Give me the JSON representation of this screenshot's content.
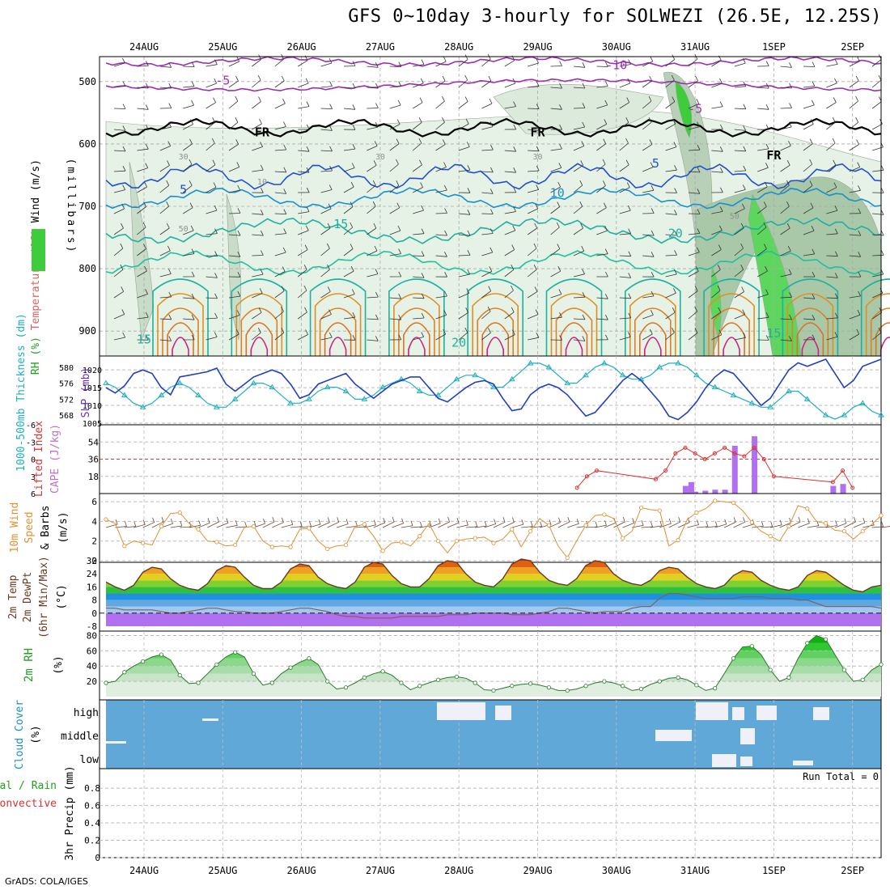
{
  "title": "GFS 0~10day 3-hourly for SOLWEZI (26.5E, 12.25S)",
  "credit": "GrADS: COLA/IGES",
  "dates": [
    "24AUG",
    "25AUG",
    "26AUG",
    "27AUG",
    "28AUG",
    "29AUG",
    "30AUG",
    "31AUG",
    "1SEP",
    "2SEP"
  ],
  "chart_data": [
    {
      "type": "heatmap",
      "panel": "upper-air",
      "ylabel_parts": [
        {
          "text": "RH (%)",
          "color": "#20a020"
        },
        {
          "text": "Temperature (°C)",
          "color": "#e06060"
        },
        {
          "text": "Wind (m/s)",
          "color": "#000000"
        },
        {
          "text": "(millibars)",
          "color": "#000000"
        }
      ],
      "yticks": [
        500,
        600,
        700,
        800,
        900
      ],
      "contour_labels": [
        {
          "text": "-10",
          "color": "#9b30b0",
          "x": "30AUG 00",
          "p": 480
        },
        {
          "text": "-5",
          "color": "#9b30b0",
          "x": "25AUG 00",
          "p": 505
        },
        {
          "text": "-5",
          "color": "#9b30b0",
          "x": "31AUG 00",
          "p": 550
        },
        {
          "text": "FR",
          "color": "#000000",
          "x": "25AUG 12",
          "p": 588
        },
        {
          "text": "FR",
          "color": "#000000",
          "x": "29AUG 00",
          "p": 588
        },
        {
          "text": "FR",
          "color": "#000000",
          "x": "1SEP 00",
          "p": 625
        },
        {
          "text": "5",
          "color": "#2050d0",
          "x": "24AUG 12",
          "p": 680
        },
        {
          "text": "5",
          "color": "#2050d0",
          "x": "30AUG 12",
          "p": 638
        },
        {
          "text": "10",
          "color": "#1a8fcf",
          "x": "29AUG 06",
          "p": 685
        },
        {
          "text": "15",
          "color": "#20b0a0",
          "x": "26AUG 12",
          "p": 735
        },
        {
          "text": "20",
          "color": "#20b0a0",
          "x": "30AUG 18",
          "p": 750
        },
        {
          "text": "15",
          "color": "#20b0a0",
          "x": "24AUG 00",
          "p": 920
        },
        {
          "text": "20",
          "color": "#20b0a0",
          "x": "28AUG 00",
          "p": 925
        },
        {
          "text": "15",
          "color": "#20b0a0",
          "x": "1SEP 00",
          "p": 910
        },
        {
          "text": "30",
          "color": "#909090",
          "x": "24AUG 12",
          "p": 625
        },
        {
          "text": "30",
          "color": "#909090",
          "x": "27AUG 00",
          "p": 625
        },
        {
          "text": "30",
          "color": "#909090",
          "x": "29AUG 00",
          "p": 625
        },
        {
          "text": "10",
          "color": "#909090",
          "x": "25AUG 12",
          "p": 665
        },
        {
          "text": "50",
          "color": "#909090",
          "x": "24AUG 12",
          "p": 740
        },
        {
          "text": "50",
          "color": "#909090",
          "x": "31AUG 12",
          "p": 720
        }
      ]
    },
    {
      "type": "line",
      "panel": "slp-thickness",
      "ylabel_left": "1000-500mb Thickness (dm)",
      "ylabel_right": "SLP (mb)",
      "yticks_left": [
        568,
        572,
        576,
        580
      ],
      "yticks_right": [
        1005,
        1010,
        1015,
        1020
      ],
      "series": [
        {
          "name": "SLP (mb)",
          "color": "#2040c0",
          "axis": "right",
          "values": [
            1015,
            1013.5,
            1015.5,
            1019,
            1020,
            1019,
            1015,
            1013,
            1018,
            1018.5,
            1019,
            1019.5,
            1020.5,
            1016,
            1014,
            1016,
            1018,
            1019,
            1020,
            1019,
            1016,
            1012,
            1013,
            1016,
            1017,
            1018,
            1019,
            1016,
            1014,
            1012,
            1014,
            1016,
            1017,
            1018,
            1018,
            1015,
            1012,
            1011,
            1013,
            1015,
            1016.5,
            1017,
            1016,
            1012,
            1008.5,
            1009,
            1013,
            1015,
            1016,
            1015,
            1013,
            1010,
            1007,
            1008,
            1011,
            1014,
            1017,
            1019,
            1017,
            1014,
            1011,
            1007,
            1006,
            1008,
            1011,
            1015,
            1018,
            1020,
            1019,
            1016,
            1013,
            1010,
            1012,
            1016,
            1020,
            1022,
            1021,
            1022,
            1023,
            1019,
            1015,
            1017,
            1021,
            1022,
            1023
          ]
        },
        {
          "name": "1000-500mb Thickness (dm)",
          "color": "#20b0c0",
          "axis": "left",
          "values": [
            576,
            575,
            573,
            571,
            570,
            571,
            573,
            575,
            576,
            575,
            573,
            571,
            570,
            570,
            572,
            574,
            576,
            576,
            575,
            573,
            571,
            571,
            572,
            574,
            575,
            575,
            574,
            572,
            572,
            573,
            575,
            576,
            577,
            576,
            574,
            573,
            573,
            575,
            577,
            578,
            578,
            577,
            575,
            575,
            577,
            579,
            581,
            581,
            580,
            578,
            576,
            576,
            578,
            580,
            581,
            580,
            578,
            577,
            577,
            578,
            580,
            581,
            581,
            580,
            578,
            576,
            575,
            574,
            573,
            572,
            571,
            570,
            570,
            572,
            574,
            574,
            572,
            570,
            568,
            567,
            568,
            570,
            571,
            569,
            568
          ]
        }
      ]
    },
    {
      "type": "bar",
      "panel": "cape-li",
      "ylabel_left": "Lifted Index",
      "ylabel_right": "CAPE (J/kg)",
      "yticks_left": [
        -6,
        -3,
        0,
        3,
        6
      ],
      "yticks_right": [
        18,
        36,
        54
      ],
      "series": [
        {
          "name": "CAPE (J/kg)",
          "color": "#b070f0",
          "points": [
            [
              "30AUG 21",
              8
            ],
            [
              "30AUG 21+",
              12
            ],
            [
              "31AUG 00",
              2
            ],
            [
              "31AUG 03",
              3
            ],
            [
              "31AUG 06",
              4
            ],
            [
              "31AUG 09",
              4
            ],
            [
              "31AUG 12",
              50
            ],
            [
              "31AUG 18",
              60
            ],
            [
              "1SEP 18",
              8
            ],
            [
              "1SEP 21",
              10
            ]
          ]
        },
        {
          "name": "Lifted Index",
          "color": "#e03030",
          "points": [
            [
              "29AUG 12",
              5
            ],
            [
              "29AUG 15",
              3
            ],
            [
              "29AUG 18",
              2
            ],
            [
              "30AUG 12",
              3.5
            ],
            [
              "30AUG 15",
              2
            ],
            [
              "30AUG 18",
              -1
            ],
            [
              "30AUG 21",
              -2
            ],
            [
              "31AUG 00",
              -1
            ],
            [
              "31AUG 03",
              0
            ],
            [
              "31AUG 06",
              -1
            ],
            [
              "31AUG 09",
              -2
            ],
            [
              "31AUG 12",
              -1
            ],
            [
              "31AUG 15",
              -0.5
            ],
            [
              "31AUG 18",
              -2
            ],
            [
              "31AUG 21",
              0
            ],
            [
              "1SEP 00",
              3
            ],
            [
              "1SEP 18",
              4
            ],
            [
              "1SEP 21",
              2
            ],
            [
              "2SEP 00",
              5
            ]
          ]
        }
      ]
    },
    {
      "type": "line",
      "panel": "wind10m",
      "ylabel": "10m Wind Speed & Barbs (m/s)",
      "yticks": [
        0,
        2,
        4,
        6
      ],
      "series": [
        {
          "name": "10m Wind Speed",
          "color": "#e09030",
          "values": [
            4.2,
            3.8,
            1.5,
            2.0,
            1.8,
            1.6,
            3.5,
            4.8,
            4.9,
            3.8,
            3.2,
            2.0,
            1.9,
            1.5,
            1.6,
            3.4,
            3.5,
            2.0,
            1.4,
            1.5,
            1.4,
            3.2,
            3.3,
            2.0,
            1.2,
            1.5,
            1.6,
            3.5,
            3.7,
            2.5,
            1.0,
            1.8,
            1.9,
            1.5,
            2.5,
            3.8,
            2.0,
            0.8,
            2.0,
            2.2,
            2.3,
            2.4,
            1.8,
            2.2,
            3.2,
            1.4,
            3.0,
            4.3,
            3.6,
            1.5,
            0.3,
            2.0,
            3.6,
            4.6,
            4.7,
            4.3,
            2.3,
            3.0,
            5.4,
            5.2,
            5.1,
            1.5,
            2.1,
            4.2,
            4.9,
            5.3,
            6.1,
            6.0,
            5.9,
            5.1,
            3.9,
            3.0,
            2.5,
            2.0,
            3.5,
            5.6,
            5.3,
            4.0,
            3.8,
            3.1,
            3.0,
            2.2,
            3.0,
            3.7,
            4.6
          ]
        }
      ]
    },
    {
      "type": "area",
      "panel": "temp2m",
      "ylabel": "2m Temp 2m DewPt (6hr Min/Max) (°C)",
      "yticks": [
        -8,
        0,
        8,
        16,
        24,
        32
      ],
      "series": [
        {
          "name": "2m Temp",
          "color": "#6a3a20",
          "values": [
            19,
            16,
            14,
            17,
            25,
            28,
            27,
            21,
            17,
            15,
            14,
            18,
            26,
            29,
            28,
            22,
            17,
            15,
            15,
            19,
            27,
            30,
            29,
            22,
            18,
            16,
            15,
            19,
            28,
            31,
            30,
            23,
            18,
            16,
            16,
            21,
            29,
            32,
            31,
            24,
            19,
            17,
            16,
            21,
            30,
            33,
            32,
            25,
            20,
            18,
            17,
            21,
            29,
            32,
            31,
            24,
            20,
            18,
            17,
            20,
            26,
            28,
            27,
            22,
            18,
            16,
            15,
            17,
            23,
            26,
            25,
            20,
            17,
            15,
            14,
            16,
            23,
            26,
            25,
            21,
            17,
            14,
            13,
            16,
            17
          ]
        },
        {
          "name": "2m DewPt",
          "color": "#806060",
          "values": [
            3,
            3,
            2,
            2,
            2,
            2,
            1,
            0,
            0,
            1,
            2,
            3,
            3,
            2,
            1,
            1,
            0,
            0,
            0,
            1,
            2,
            3,
            3,
            2,
            1,
            -1,
            -2,
            -2,
            -3,
            -3,
            -3,
            -3,
            -2,
            -2,
            -2,
            -2,
            -2,
            -1,
            -1,
            -1,
            0,
            0,
            0,
            0,
            -1,
            -1,
            -1,
            0,
            1,
            3,
            3,
            2,
            1,
            0,
            1,
            1,
            1,
            3,
            4,
            4,
            9,
            12,
            12,
            11,
            10,
            9,
            9,
            9,
            9,
            10,
            10,
            10,
            9,
            9,
            9,
            8,
            8,
            6,
            4,
            4,
            4,
            4,
            4,
            4,
            3
          ]
        }
      ]
    },
    {
      "type": "area",
      "panel": "rh2m",
      "ylabel": "2m RH (%)",
      "yticks": [
        20,
        40,
        60,
        80
      ],
      "series": [
        {
          "name": "2m RH",
          "color": "#2a9a2a",
          "values": [
            18,
            20,
            32,
            40,
            46,
            52,
            55,
            48,
            28,
            17,
            18,
            30,
            42,
            52,
            58,
            52,
            30,
            15,
            18,
            30,
            38,
            45,
            50,
            42,
            20,
            10,
            12,
            18,
            25,
            30,
            33,
            28,
            18,
            9,
            14,
            18,
            22,
            25,
            26,
            24,
            18,
            9,
            8,
            11,
            14,
            16,
            17,
            15,
            12,
            8,
            8,
            10,
            14,
            18,
            20,
            18,
            14,
            8,
            10,
            16,
            20,
            24,
            25,
            22,
            15,
            8,
            11,
            30,
            50,
            65,
            66,
            55,
            35,
            20,
            25,
            50,
            70,
            80,
            75,
            55,
            35,
            20,
            22,
            35,
            42
          ]
        }
      ]
    },
    {
      "type": "heatmap",
      "panel": "cloud",
      "ylabel": "Cloud Cover (%)",
      "levels": [
        "high",
        "middle",
        "low"
      ]
    },
    {
      "type": "bar",
      "panel": "precip",
      "ylabel_parts": [
        {
          "text": "Total / Rain",
          "color": "#20a020"
        },
        {
          "text": "Convective",
          "color": "#e03030"
        },
        {
          "text": "3hr Precip (mm)",
          "color": "#000000"
        }
      ],
      "yticks": [
        0,
        0.2,
        0.4,
        0.6,
        0.8
      ],
      "run_total": "Run Total = 0",
      "values": []
    }
  ]
}
